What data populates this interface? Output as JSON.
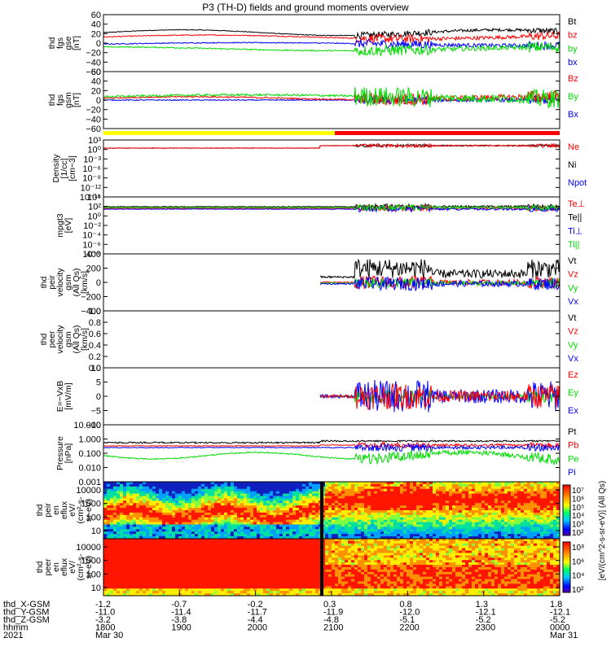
{
  "title": "P3 (TH-D) fields and ground moments overview",
  "colors": {
    "black": "#000000",
    "red": "#ff0000",
    "green": "#00dd00",
    "blue": "#0000ff",
    "yellow": "#ffff00"
  },
  "panels": [
    {
      "id": "fgs-gse",
      "ylabel": [
        "thd",
        "fgs",
        "gse",
        "[nT]"
      ],
      "yticks": [
        "60",
        "40",
        "20",
        "0",
        "−20",
        "−40",
        "−60"
      ],
      "legend": [
        {
          "t": "Bt",
          "c": "black"
        },
        {
          "t": "bz",
          "c": "red"
        },
        {
          "t": "by",
          "c": "green"
        },
        {
          "t": "bx",
          "c": "blue"
        }
      ]
    },
    {
      "id": "fgs-gsm",
      "ylabel": [
        "thd",
        "fgs",
        "gsm",
        "[nT]"
      ],
      "yticks": [
        "60",
        "40",
        "20",
        "0",
        "−20",
        "−40",
        "−60"
      ],
      "legend": [
        {
          "t": "Bz",
          "c": "red"
        },
        {
          "t": "By",
          "c": "green"
        },
        {
          "t": "Bx",
          "c": "blue"
        }
      ]
    },
    {
      "id": "density",
      "ylabel": [
        "Density",
        "[1/cc]",
        "[cm−3]"
      ],
      "yticks": [
        "10³",
        "10⁰",
        "10⁻³",
        "10⁻⁶",
        "10⁻⁹",
        "10⁻¹²",
        "10⁻¹⁵"
      ],
      "legend": [
        {
          "t": "Ne",
          "c": "red"
        },
        {
          "t": "Ni",
          "c": "black"
        },
        {
          "t": "Npot",
          "c": "blue"
        }
      ]
    },
    {
      "id": "temp",
      "ylabel": [
        "mpgt3",
        "[eV]"
      ],
      "yticks": [
        "10⁴",
        "10²",
        "10⁰",
        "10⁻²",
        "10⁻⁴",
        "10⁻⁶",
        "10⁻⁸"
      ],
      "legend": [
        {
          "t": "Te⊥",
          "c": "red"
        },
        {
          "t": "Te||",
          "c": "black"
        },
        {
          "t": "Ti⊥",
          "c": "blue"
        },
        {
          "t": "Ti||",
          "c": "green"
        }
      ]
    },
    {
      "id": "peir-vel",
      "ylabel": [
        "thd",
        "peir",
        "velocity",
        "gsm",
        "(All Qs)",
        "[km/s]"
      ],
      "yticks": [
        "400",
        "200",
        "0",
        "−200",
        "−400"
      ],
      "legend": [
        {
          "t": "Vt",
          "c": "black"
        },
        {
          "t": "Vz",
          "c": "red"
        },
        {
          "t": "Vy",
          "c": "green"
        },
        {
          "t": "Vx",
          "c": "blue"
        }
      ]
    },
    {
      "id": "peer-vel",
      "ylabel": [
        "thd",
        "peer",
        "velocity",
        "gsm",
        "(All Qs)",
        "[km/s]"
      ],
      "yticks": [
        "1.0",
        "0.8",
        "0.6",
        "0.4",
        "0.2",
        "0.0"
      ],
      "legend": [
        {
          "t": "Vt",
          "c": "black"
        },
        {
          "t": "Vz",
          "c": "red"
        },
        {
          "t": "Vy",
          "c": "green"
        },
        {
          "t": "Vx",
          "c": "blue"
        }
      ]
    },
    {
      "id": "efield",
      "ylabel": [
        "E=−VxB",
        "[mV/m]"
      ],
      "yticks": [
        "10",
        "5",
        "0",
        "−5",
        "−10"
      ],
      "legend": [
        {
          "t": "Ez",
          "c": "red"
        },
        {
          "t": "Ey",
          "c": "green"
        },
        {
          "t": "Ex",
          "c": "blue"
        }
      ]
    },
    {
      "id": "pressure",
      "ylabel": [
        "Pressure",
        "[nPa]"
      ],
      "yticks": [
        "10.000",
        "1.000",
        "0.100",
        "0.010",
        "0.001"
      ],
      "legend": [
        {
          "t": "Pt",
          "c": "black"
        },
        {
          "t": "Pb",
          "c": "red"
        },
        {
          "t": "Pe",
          "c": "green"
        },
        {
          "t": "Pi",
          "c": "blue"
        }
      ]
    },
    {
      "id": "peir-spec",
      "ylabel": [
        "thd",
        "peir",
        "en",
        "eflux",
        "eV/",
        "(cm²-s-",
        "sr-eV)"
      ],
      "yticks": [
        "10000",
        "1000",
        "100",
        "10"
      ]
    },
    {
      "id": "peer-spec",
      "ylabel": [
        "thd",
        "peer",
        "en",
        "eflux",
        "eV/",
        "(cm²-s-",
        "sr-eV)"
      ],
      "yticks": [
        "10000",
        "1000",
        "100",
        "10"
      ]
    }
  ],
  "colorbar": {
    "label": "[eV/(cm^2-s-sr-eV)] (All Qs)",
    "ticks_top": [
      "10⁷",
      "10⁶",
      "10⁵",
      "10⁴",
      "10³",
      "10²"
    ],
    "ticks_bottom": [
      "10⁸",
      "10⁶",
      "10⁴",
      "10²"
    ]
  },
  "xaxis": {
    "rows": [
      {
        "label": "thd_X-GSM",
        "values": [
          "-1.2",
          "-0.7",
          "-0.2",
          "0.3",
          "0.8",
          "1.3",
          "1.8"
        ]
      },
      {
        "label": "thd_Y-GSM",
        "values": [
          "-11.0",
          "-11.4",
          "-11.7",
          "-11.9",
          "-12.0",
          "-12.1",
          "-12.1"
        ]
      },
      {
        "label": "thd_Z-GSM",
        "values": [
          "-3.2",
          "-3.8",
          "-4.4",
          "-4.8",
          "-5.1",
          "-5.2",
          "-5.2"
        ]
      },
      {
        "label": "hhmm",
        "values": [
          "1800",
          "1900",
          "2000",
          "2100",
          "2200",
          "2300",
          "0000"
        ]
      },
      {
        "label": "2021",
        "values": [
          "Mar 30",
          "",
          "",
          "",
          "",
          "",
          "Mar 31"
        ]
      }
    ]
  },
  "chart_data": [
    {
      "type": "line",
      "title": "P3 (TH-D) fields and ground moments overview",
      "ylabel": "thd fgs gse [nT]",
      "ylim": [
        -60,
        60
      ],
      "xlabel": "hhmm",
      "xlim": [
        "1800",
        "0000"
      ],
      "series": [
        {
          "name": "Bt"
        },
        {
          "name": "bz"
        },
        {
          "name": "by"
        },
        {
          "name": "bx"
        }
      ]
    },
    {
      "type": "line",
      "ylabel": "thd fgs gsm [nT]",
      "ylim": [
        -60,
        60
      ],
      "series": [
        {
          "name": "Bz"
        },
        {
          "name": "By"
        },
        {
          "name": "Bx"
        }
      ]
    },
    {
      "type": "line",
      "ylabel": "Density [1/cc] [cm-3]",
      "scale": "log",
      "series": [
        {
          "name": "Ne"
        },
        {
          "name": "Ni"
        },
        {
          "name": "Npot"
        }
      ]
    },
    {
      "type": "line",
      "ylabel": "mpgt3 [eV]",
      "scale": "log",
      "series": [
        {
          "name": "Te⊥"
        },
        {
          "name": "Te||"
        },
        {
          "name": "Ti⊥"
        },
        {
          "name": "Ti||"
        }
      ]
    },
    {
      "type": "line",
      "ylabel": "thd peir velocity gsm (All Qs) [km/s]",
      "ylim": [
        -400,
        400
      ],
      "series": [
        {
          "name": "Vt"
        },
        {
          "name": "Vz"
        },
        {
          "name": "Vy"
        },
        {
          "name": "Vx"
        }
      ]
    },
    {
      "type": "line",
      "ylabel": "thd peer velocity gsm (All Qs) [km/s]",
      "ylim": [
        0,
        1
      ],
      "series": [
        {
          "name": "Vt"
        },
        {
          "name": "Vz"
        },
        {
          "name": "Vy"
        },
        {
          "name": "Vx"
        }
      ]
    },
    {
      "type": "line",
      "ylabel": "E=-VxB [mV/m]",
      "ylim": [
        -10,
        10
      ],
      "series": [
        {
          "name": "Ez"
        },
        {
          "name": "Ey"
        },
        {
          "name": "Ex"
        }
      ]
    },
    {
      "type": "line",
      "ylabel": "Pressure [nPa]",
      "scale": "log",
      "ylim": [
        0.001,
        10
      ],
      "series": [
        {
          "name": "Pt"
        },
        {
          "name": "Pb"
        },
        {
          "name": "Pe"
        },
        {
          "name": "Pi"
        }
      ]
    },
    {
      "type": "heatmap",
      "ylabel": "thd peir en eflux",
      "scale": "log",
      "ylim": [
        5,
        25000
      ]
    },
    {
      "type": "heatmap",
      "ylabel": "thd peer en eflux",
      "scale": "log",
      "ylim": [
        5,
        25000
      ]
    }
  ]
}
